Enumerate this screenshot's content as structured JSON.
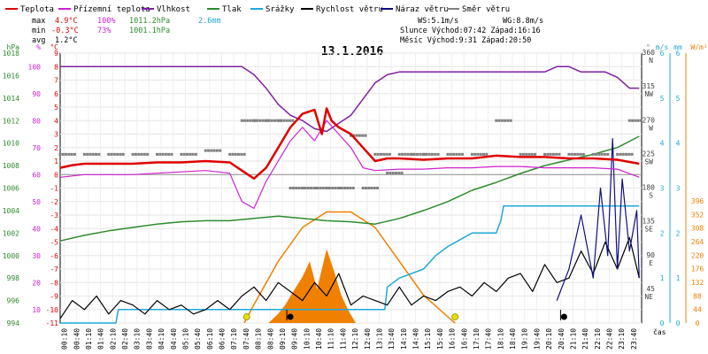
{
  "legend": [
    {
      "label": "Teplota",
      "color": "#e00000"
    },
    {
      "label": "Přízemní teplota",
      "color": "#d020d0"
    },
    {
      "label": "Vlhkost",
      "color": "#8020a0"
    },
    {
      "label": "Tlak",
      "color": "#2e8b2e"
    },
    {
      "label": "Srážky",
      "color": "#20a8d8"
    },
    {
      "label": "Rychlost větru",
      "color": "#000000"
    },
    {
      "label": "Náraz větru",
      "color": "#101080"
    },
    {
      "label": "Směr větru",
      "color": "#808080"
    }
  ],
  "stats": {
    "max_label": "max",
    "max_temp": "4.9°C",
    "max_hum": "100%",
    "max_press": "1011.2hPa",
    "rain_total": "2.6mm",
    "min_label": "min",
    "min_temp": "-0.3°C",
    "min_hum": "73%",
    "min_press": "1001.1hPa",
    "avg_label": "avg",
    "avg_temp": "1.2°C",
    "ws": "WS:5.1m/s",
    "wg": "WG:8.8m/s",
    "sun": "Slunce Východ:07:42  Západ:16:16",
    "moon": "Měsíc  Východ:9:31   Západ:20:50"
  },
  "chart_data": {
    "type": "line",
    "title": "13.1.2016",
    "axes": {
      "hpa": {
        "unit": "hPa",
        "ticks": [
          "1018",
          "1016",
          "1014",
          "1012",
          "1010",
          "1008",
          "1006",
          "1004",
          "1002",
          "1000",
          "998",
          "996",
          "994"
        ],
        "range": [
          994,
          1018
        ],
        "color": "#2e8b2e"
      },
      "pct": {
        "unit": "%",
        "ticks": [
          "100",
          "90",
          "80",
          "70",
          "60",
          "50",
          "40",
          "30",
          "20",
          "10"
        ],
        "range": [
          5,
          105
        ],
        "color": "#d020d0"
      },
      "c": {
        "unit": "°C",
        "ticks": [
          "9",
          "8",
          "7",
          "6",
          "5",
          "4",
          "3",
          "2",
          "1",
          "0",
          "-1",
          "-2",
          "-3",
          "-4",
          "-5",
          "-6",
          "-7",
          "-8",
          "-9",
          "-10",
          "-11"
        ],
        "range": [
          -11,
          9
        ],
        "color": "#e00000"
      },
      "deg": {
        "unit": "°",
        "ticks": [
          {
            "v": "360",
            "d": "N"
          },
          {
            "v": "315",
            "d": "NW"
          },
          {
            "v": "270",
            "d": "W"
          },
          {
            "v": "225",
            "d": "SW"
          },
          {
            "v": "180",
            "d": "S"
          },
          {
            "v": "135",
            "d": "SE"
          },
          {
            "v": "90",
            "d": "E"
          },
          {
            "v": "45",
            "d": "NE"
          }
        ],
        "range": [
          0,
          360
        ],
        "color": "#808080"
      },
      "ms": {
        "unit": "m/s",
        "ticks": [
          "6",
          "5",
          "4",
          "3",
          "2",
          "1",
          "0"
        ],
        "range": [
          0,
          6
        ],
        "color": "#20a8d8"
      },
      "mm": {
        "unit": "mm",
        "ticks": [
          "6",
          "5",
          "4",
          "3",
          "2",
          "1",
          "0"
        ],
        "range": [
          0,
          6
        ],
        "color": "#20a8d8"
      },
      "wm2": {
        "unit": "W/m²",
        "ticks": [
          "396",
          "352",
          "308",
          "264",
          "220",
          "176",
          "132",
          "88",
          "44",
          "0"
        ],
        "range": [
          0,
          396
        ],
        "color": "#f08000"
      },
      "x_ticks": [
        "00:10",
        "00:40",
        "01:10",
        "01:40",
        "02:10",
        "02:40",
        "03:10",
        "03:40",
        "04:10",
        "04:40",
        "05:10",
        "05:40",
        "06:10",
        "06:40",
        "07:10",
        "07:40",
        "08:10",
        "08:40",
        "09:10",
        "09:40",
        "10:10",
        "10:40",
        "11:10",
        "11:40",
        "12:10",
        "12:40",
        "13:10",
        "13:40",
        "14:10",
        "14:40",
        "15:10",
        "15:40",
        "16:10",
        "16:40",
        "17:10",
        "17:40",
        "18:10",
        "18:40",
        "19:10",
        "19:40",
        "20:10",
        "20:40",
        "21:10",
        "21:40",
        "22:10",
        "22:40",
        "23:10",
        "23:40"
      ],
      "x_label": "čas"
    },
    "series": [
      {
        "name": "Teplota",
        "unit": "°C",
        "color": "#e00000",
        "x": [
          0,
          0.5,
          1,
          2,
          3,
          4,
          5,
          6,
          7,
          7.5,
          8,
          8.5,
          9,
          9.5,
          10,
          10.5,
          10.8,
          11,
          11.2,
          11.5,
          12,
          12.5,
          13,
          13.5,
          14,
          15,
          16,
          17,
          18,
          19,
          20,
          21,
          22,
          23,
          23.9
        ],
        "values": [
          0.5,
          0.7,
          0.8,
          0.8,
          0.8,
          0.9,
          0.9,
          1,
          0.9,
          0.3,
          -0.3,
          0.5,
          2,
          3.5,
          4.5,
          4.8,
          3,
          4.9,
          4,
          3.5,
          3,
          2,
          1,
          1.2,
          1.2,
          1.1,
          1.2,
          1.2,
          1.4,
          1.3,
          1.3,
          1.2,
          1.2,
          1.1,
          0.8
        ]
      },
      {
        "name": "Přízemní teplota",
        "unit": "°C",
        "color": "#d020d0",
        "x": [
          0,
          1,
          2,
          3,
          4,
          5,
          6,
          7,
          7.5,
          8,
          8.5,
          9,
          9.5,
          10,
          10.5,
          11,
          11.5,
          12,
          12.5,
          13,
          14,
          15,
          16,
          17,
          18,
          19,
          20,
          21,
          22,
          23,
          23.9
        ],
        "values": [
          -0.2,
          0,
          0,
          0,
          0.1,
          0.2,
          0.3,
          0.1,
          -2,
          -2.5,
          -0.5,
          1,
          2.5,
          3.5,
          2.5,
          4,
          3,
          2,
          0.5,
          0.3,
          0.4,
          0.4,
          0.5,
          0.5,
          0.6,
          0.6,
          0.5,
          0.5,
          0.5,
          0.4,
          -0.2
        ]
      },
      {
        "name": "Vlhkost",
        "unit": "%",
        "color": "#8020a0",
        "x": [
          0,
          2,
          4,
          6,
          7,
          7.5,
          8,
          8.5,
          9,
          9.5,
          10,
          10.5,
          11,
          11.5,
          12,
          12.5,
          13,
          13.5,
          14,
          15,
          16,
          17,
          18,
          19,
          20,
          20.5,
          21,
          21.5,
          22,
          22.5,
          23,
          23.5,
          23.9
        ],
        "values": [
          100,
          100,
          100,
          100,
          100,
          100,
          97,
          92,
          86,
          82,
          80,
          77,
          76,
          79,
          82,
          88,
          94,
          97,
          98,
          98,
          98,
          98,
          98,
          98,
          98,
          100,
          100,
          98,
          98,
          98,
          96,
          92,
          92
        ]
      },
      {
        "name": "Tlak",
        "unit": "hPa",
        "color": "#2e8b2e",
        "x": [
          0,
          1,
          2,
          3,
          4,
          5,
          6,
          7,
          8,
          9,
          10,
          11,
          12,
          13,
          14,
          15,
          16,
          17,
          18,
          19,
          20,
          21,
          22,
          23,
          23.9
        ],
        "values": [
          1001.3,
          1001.8,
          1002.2,
          1002.5,
          1002.8,
          1003.0,
          1003.1,
          1003.1,
          1003.3,
          1003.5,
          1003.3,
          1003.1,
          1003.0,
          1002.8,
          1003.3,
          1004.0,
          1004.8,
          1005.8,
          1006.5,
          1007.3,
          1008.0,
          1008.5,
          1009.0,
          1009.6,
          1010.6
        ]
      },
      {
        "name": "Srážky",
        "unit": "mm",
        "color": "#20a8d8",
        "x": [
          0,
          2.3,
          2.4,
          13.4,
          13.5,
          14,
          15,
          15.5,
          16,
          17,
          18,
          18.2,
          18.3,
          20.4,
          20.5,
          23.9
        ],
        "values": [
          0,
          0,
          0.3,
          0.3,
          0.8,
          1,
          1.2,
          1.5,
          1.7,
          2.0,
          2.0,
          2.3,
          2.6,
          2.6,
          2.6,
          2.6
        ]
      },
      {
        "name": "Rychlost větru",
        "unit": "m/s",
        "color": "#000000",
        "x": [
          0,
          0.5,
          1,
          1.5,
          2,
          2.5,
          3,
          3.5,
          4,
          4.5,
          5,
          5.5,
          6,
          6.5,
          7,
          7.5,
          8,
          8.5,
          9,
          9.5,
          10,
          10.5,
          11,
          11.5,
          12,
          12.5,
          13,
          13.5,
          14,
          14.5,
          15,
          15.5,
          16,
          16.5,
          17,
          17.5,
          18,
          18.5,
          19,
          19.5,
          20,
          20.5,
          21,
          21.5,
          22,
          22.5,
          23,
          23.5,
          23.9
        ],
        "values": [
          0.1,
          0.5,
          0.3,
          0.6,
          0.2,
          0.5,
          0.4,
          0.2,
          0.5,
          0.3,
          0.4,
          0.2,
          0.3,
          0.5,
          0.3,
          0.6,
          0.8,
          0.5,
          0.9,
          0.7,
          0.5,
          0.9,
          0.6,
          1.1,
          0.4,
          0.6,
          0.5,
          0.4,
          0.8,
          0.4,
          0.6,
          0.5,
          0.7,
          0.8,
          0.6,
          0.9,
          0.7,
          1.0,
          1.1,
          0.7,
          1.3,
          0.9,
          1.0,
          1.6,
          1.1,
          1.8,
          1.2,
          1.9,
          1.0
        ]
      },
      {
        "name": "Náraz větru",
        "unit": "m/s",
        "color": "#101080",
        "x": [
          20.5,
          21,
          21.5,
          22,
          22.3,
          22.6,
          22.8,
          23,
          23.2,
          23.5,
          23.8,
          23.9
        ],
        "values": [
          0.5,
          1.2,
          2.4,
          1.0,
          3.0,
          1.5,
          4.1,
          1.2,
          3.2,
          1.6,
          2.5,
          1.0
        ]
      },
      {
        "name": "Směr větru",
        "unit": "°",
        "color": "#808080",
        "x": [
          0,
          1,
          2,
          3,
          4,
          5,
          6,
          7,
          7.5,
          8,
          8.5,
          9,
          9.5,
          10,
          10.5,
          11,
          11.5,
          12,
          12.5,
          13,
          13.5,
          14,
          14.5,
          15,
          16,
          17,
          18,
          19,
          20,
          21,
          22,
          23,
          23.5
        ],
        "values": [
          225,
          225,
          225,
          225,
          225,
          225,
          230,
          225,
          270,
          270,
          270,
          270,
          180,
          180,
          180,
          180,
          180,
          250,
          180,
          225,
          200,
          225,
          225,
          225,
          225,
          225,
          270,
          225,
          225,
          225,
          225,
          225,
          270
        ]
      },
      {
        "name": "Solar",
        "unit": "W/m²",
        "color": "#f08000",
        "x": [
          7.6,
          8,
          9,
          10,
          11,
          12,
          13,
          14,
          15,
          16,
          16.3
        ],
        "values": [
          0,
          60,
          200,
          310,
          360,
          360,
          310,
          200,
          90,
          20,
          0
        ]
      },
      {
        "name": "Solar measured",
        "unit": "W/m²",
        "color": "#f08000",
        "x": [
          8.6,
          9,
          9.3,
          9.6,
          10,
          10.3,
          10.6,
          11,
          11.3,
          11.6,
          11.9,
          12.2,
          12.6,
          13
        ],
        "values": [
          0,
          30,
          60,
          100,
          150,
          200,
          110,
          240,
          170,
          90,
          40,
          0,
          0,
          0
        ]
      }
    ],
    "annotations": [
      {
        "label": "sunrise",
        "x": 7.7,
        "color": "#e8e000"
      },
      {
        "label": "sunset",
        "x": 16.3,
        "color": "#e8e000"
      },
      {
        "label": "moonrise",
        "x": 9.5,
        "color": "#000000"
      },
      {
        "label": "moonset",
        "x": 20.8,
        "color": "#000000"
      }
    ]
  }
}
